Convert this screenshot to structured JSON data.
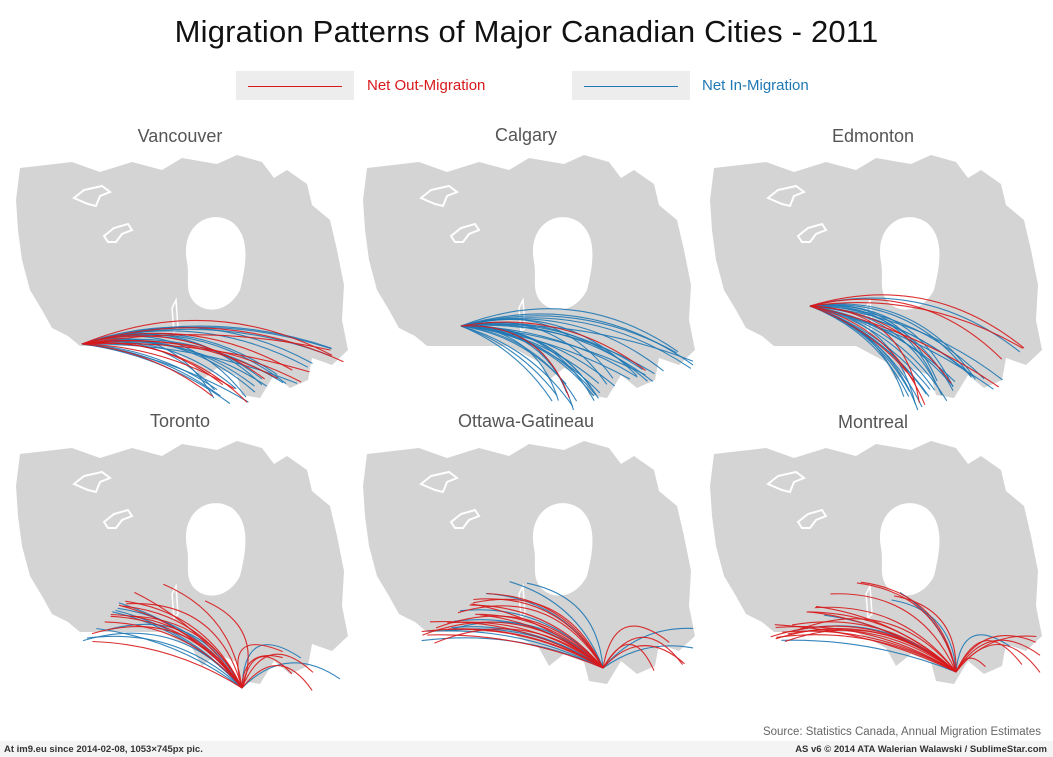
{
  "title": "Migration Patterns of Major Canadian Cities - 2011",
  "legend": {
    "out": {
      "label": "Net Out-Migration",
      "color": "#d7191c"
    },
    "in": {
      "label": "Net In-Migration",
      "color": "#1f78b4"
    }
  },
  "map_color": "#d4d4d4",
  "panels": [
    {
      "name": "Vancouver",
      "origin": "west",
      "out": 12,
      "in": 22
    },
    {
      "name": "Calgary",
      "origin": "prairie",
      "out": 2,
      "in": 32
    },
    {
      "name": "Edmonton",
      "origin": "prairie-north",
      "out": 8,
      "in": 26
    },
    {
      "name": "Toronto",
      "origin": "ontario",
      "out": 18,
      "in": 10
    },
    {
      "name": "Ottawa-Gatineau",
      "origin": "ottawa",
      "out": 20,
      "in": 12
    },
    {
      "name": "Montreal",
      "origin": "quebec",
      "out": 24,
      "in": 6
    }
  ],
  "source": "Source: Statistics Canada, Annual Migration Estimates",
  "footer": {
    "left": "At im9.eu  since 2014-02-08, 1053×745px pic.",
    "right": "AS v6 © 2014 ATA Walerian Walawski / SublimeStar.com"
  }
}
